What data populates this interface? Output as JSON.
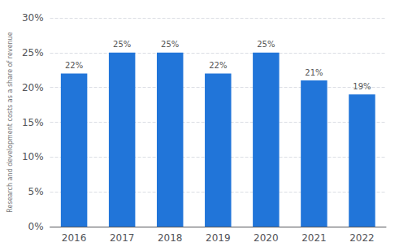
{
  "chart_data": {
    "type": "bar",
    "ylabel": "Research and development costs as a share of revenue",
    "categories": [
      "2016",
      "2017",
      "2018",
      "2019",
      "2020",
      "2021",
      "2022"
    ],
    "values": [
      22,
      25,
      25,
      22,
      25,
      21,
      19
    ],
    "value_labels": [
      "22%",
      "25%",
      "25%",
      "22%",
      "25%",
      "21%",
      "19%"
    ],
    "data_labels": true,
    "color": "#2175d9",
    "ylim": [
      0,
      30
    ],
    "yticks": [
      {
        "value": 0,
        "label": "0%"
      },
      {
        "value": 5,
        "label": "5%"
      },
      {
        "value": 10,
        "label": "10%"
      },
      {
        "value": 15,
        "label": "15%"
      },
      {
        "value": 20,
        "label": "20%"
      },
      {
        "value": 25,
        "label": "25%"
      },
      {
        "value": 30,
        "label": "30%"
      }
    ],
    "grid": true
  }
}
